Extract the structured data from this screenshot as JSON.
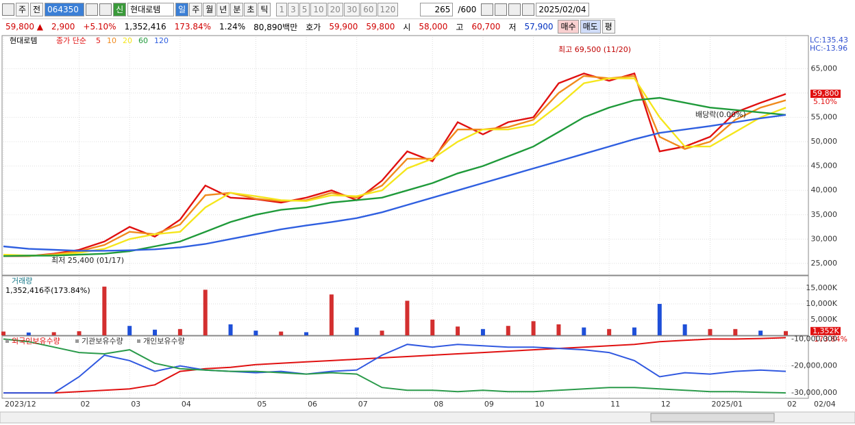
{
  "toolbar": {
    "market": "주",
    "scope": "전",
    "code": "064350",
    "badge": "신",
    "name": "현대로템",
    "units": [
      "일",
      "주",
      "월",
      "년",
      "분",
      "초",
      "틱"
    ],
    "periods": [
      "1",
      "3",
      "5",
      "10",
      "20",
      "30",
      "60",
      "120"
    ],
    "count": "265",
    "total": "/600",
    "date": "2025/02/04"
  },
  "info_bar": {
    "items": [
      "59,800 ▲",
      "2,900",
      "+5.10%",
      "1,352,416",
      "173.84%",
      "1.24%",
      "80,890백만",
      "호가",
      "59,900",
      "59,800",
      "시",
      "58,000",
      "고",
      "60,700",
      "저",
      "57,900"
    ],
    "colors": [
      "#d00000",
      "#d00000",
      "#d00000",
      "#000000",
      "#d00000",
      "#000000",
      "#000000",
      "#000000",
      "#d00000",
      "#d00000",
      "#000000",
      "#d00000",
      "#000000",
      "#d00000",
      "#000000",
      "#0030c0"
    ],
    "buttons": [
      "매수",
      "매도",
      "평"
    ]
  },
  "chart_data": [
    {
      "type": "line",
      "title": "현대로템",
      "legend_label": "종가 단순",
      "ylim": [
        22600,
        71500
      ],
      "yticks": [
        {
          "value": 25000,
          "label": "25,000"
        },
        {
          "value": 30000,
          "label": "30,000"
        },
        {
          "value": 35000,
          "label": "35,000"
        },
        {
          "value": 40000,
          "label": "40,000"
        },
        {
          "value": 45000,
          "label": "45,000"
        },
        {
          "value": 50000,
          "label": "50,000"
        },
        {
          "value": 55000,
          "label": "55,000"
        },
        {
          "value": 60000,
          "label": "60,000"
        },
        {
          "value": 65000,
          "label": "65,000"
        }
      ],
      "grid": true,
      "series": [
        {
          "name": "5",
          "color": "#e01010",
          "values": [
            26500,
            26500,
            27000,
            27800,
            29500,
            32500,
            30500,
            34000,
            41000,
            38500,
            38200,
            37500,
            38500,
            40000,
            38000,
            42000,
            48000,
            46000,
            54000,
            51500,
            54000,
            55000,
            62000,
            64000,
            62500,
            64000,
            48000,
            49000,
            51000,
            56000,
            58000,
            59800
          ]
        },
        {
          "name": "10",
          "color": "#f08a1c",
          "values": [
            26600,
            26500,
            26900,
            27500,
            28800,
            31500,
            31000,
            33000,
            39000,
            39500,
            38300,
            37800,
            38000,
            39500,
            38500,
            41000,
            46500,
            46500,
            52500,
            52500,
            53000,
            54500,
            60000,
            63500,
            63000,
            63500,
            51000,
            48500,
            50000,
            54500,
            57000,
            58500
          ]
        },
        {
          "name": "20",
          "color": "#f5e61c",
          "values": [
            26800,
            26600,
            26700,
            27200,
            28000,
            30000,
            31000,
            31500,
            36500,
            39500,
            38800,
            38000,
            37800,
            39000,
            38800,
            40000,
            44500,
            46500,
            50000,
            52500,
            52500,
            53500,
            57500,
            62000,
            63000,
            63000,
            55000,
            49000,
            49000,
            52000,
            55000,
            57000
          ]
        },
        {
          "name": "60",
          "color": "#1f9a3a",
          "values": [
            26500,
            26600,
            26600,
            26800,
            27000,
            27500,
            28500,
            29500,
            31500,
            33500,
            35000,
            36000,
            36500,
            37500,
            38000,
            38500,
            40000,
            41500,
            43500,
            45000,
            47000,
            49000,
            52000,
            55000,
            57000,
            58500,
            59000,
            58000,
            57000,
            56500,
            56000,
            55500
          ]
        },
        {
          "name": "120",
          "color": "#2f5fe0",
          "values": [
            28500,
            28000,
            27800,
            27600,
            27600,
            27700,
            27900,
            28300,
            29000,
            30000,
            31000,
            32000,
            32800,
            33500,
            34300,
            35500,
            37000,
            38500,
            40000,
            41500,
            43000,
            44500,
            46000,
            47500,
            49000,
            50500,
            51800,
            52500,
            53200,
            54000,
            54800,
            55500
          ]
        }
      ],
      "annotations": {
        "high": "최고 69,500 (11/20)",
        "low": "최저 25,400 (01/17)",
        "dividend": "배당락(0.00%)",
        "lc": "LC:135.43",
        "hc": "HC:-13.96",
        "last_price": "59,800",
        "last_change": "5.10%"
      }
    },
    {
      "type": "bar",
      "title": "거래량",
      "subtitle": "1,352,416주(173.84%)",
      "ylim": [
        0,
        18500
      ],
      "yticks": [
        {
          "value": 5000,
          "label": "5,000K"
        },
        {
          "value": 10000,
          "label": "10,000K"
        },
        {
          "value": 15000,
          "label": "15,000K"
        }
      ],
      "values": [
        1200,
        900,
        1000,
        1300,
        15500,
        3000,
        1800,
        2000,
        14500,
        3500,
        1500,
        1200,
        1000,
        13000,
        2500,
        1500,
        11000,
        5000,
        2800,
        2000,
        3000,
        4500,
        3500,
        2500,
        2000,
        2500,
        10000,
        3500,
        2000,
        2000,
        1500,
        1352
      ],
      "value_labels": {
        "31": "1,352K"
      },
      "last_ratio": "173.84%",
      "bar_colors": [
        "#d32f2f",
        "#1e4fd8",
        "#d32f2f",
        "#d32f2f",
        "#d32f2f",
        "#1e4fd8",
        "#1e4fd8",
        "#d32f2f",
        "#d32f2f",
        "#1e4fd8",
        "#1e4fd8",
        "#d32f2f",
        "#1e4fd8",
        "#d32f2f",
        "#1e4fd8",
        "#d32f2f",
        "#d32f2f",
        "#d32f2f",
        "#d32f2f",
        "#1e4fd8",
        "#d32f2f",
        "#d32f2f",
        "#d32f2f",
        "#1e4fd8",
        "#d32f2f",
        "#1e4fd8",
        "#1e4fd8",
        "#1e4fd8",
        "#d32f2f",
        "#d32f2f",
        "#1e4fd8",
        "#d32f2f"
      ]
    },
    {
      "type": "line",
      "ylim": [
        -32000000,
        -9400000
      ],
      "yticks": [
        {
          "value": -10000000,
          "label": "-10,000,000"
        },
        {
          "value": -20000000,
          "label": "-20,000,000"
        },
        {
          "value": -30000000,
          "label": "-30,000,000"
        }
      ],
      "categories": [
        "2023/12",
        null,
        null,
        "02",
        null,
        "03",
        null,
        "04",
        null,
        null,
        "05",
        null,
        "06",
        null,
        "07",
        null,
        null,
        "08",
        null,
        "09",
        null,
        "10",
        null,
        null,
        "11",
        null,
        "12",
        null,
        "2025/01",
        null,
        null,
        "02"
      ],
      "x_end_label": "02/04",
      "series": [
        {
          "name": "외국인보유수량",
          "color": "#e01010",
          "values": [
            -30000000,
            -30000000,
            -30000000,
            -29500000,
            -29000000,
            -28500000,
            -27000000,
            -22000000,
            -21000000,
            -20500000,
            -19500000,
            -19000000,
            -18500000,
            -18000000,
            -17500000,
            -17000000,
            -16500000,
            -16000000,
            -15500000,
            -15000000,
            -14500000,
            -14000000,
            -13500000,
            -13000000,
            -12500000,
            -12000000,
            -11000000,
            -10500000,
            -10000000,
            -10000000,
            -9800000,
            -9500000
          ]
        },
        {
          "name": "기관보유수량",
          "color": "#3058e0",
          "values": [
            -30000000,
            -30000000,
            -30000000,
            -24000000,
            -16000000,
            -18000000,
            -22000000,
            -20000000,
            -21500000,
            -22000000,
            -22500000,
            -22000000,
            -23000000,
            -22000000,
            -21500000,
            -16000000,
            -12000000,
            -13000000,
            -12000000,
            -12500000,
            -13000000,
            -13000000,
            -13500000,
            -14000000,
            -15000000,
            -18000000,
            -24000000,
            -22500000,
            -23000000,
            -22000000,
            -21500000,
            -22000000
          ]
        },
        {
          "name": "개인보유수량",
          "color": "#2a9a4a",
          "values": [
            -10000000,
            -11000000,
            -13000000,
            -15000000,
            -15500000,
            -14000000,
            -19000000,
            -21000000,
            -21500000,
            -22000000,
            -22000000,
            -22500000,
            -23000000,
            -22500000,
            -23000000,
            -28000000,
            -29000000,
            -29000000,
            -29500000,
            -29000000,
            -29500000,
            -29500000,
            -29000000,
            -28500000,
            -28000000,
            -28000000,
            -28500000,
            -29000000,
            -29500000,
            -29500000,
            -29800000,
            -30000000
          ]
        }
      ]
    }
  ]
}
